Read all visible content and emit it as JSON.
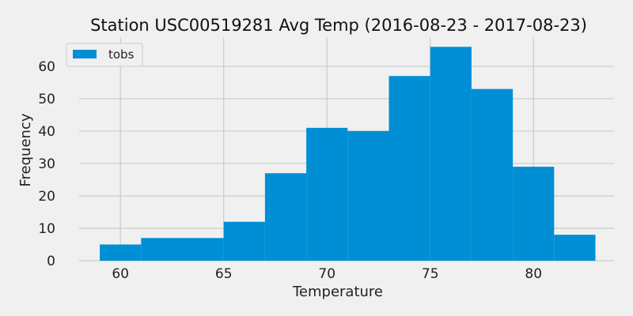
{
  "chart_data": {
    "type": "bar",
    "title": "Station USC00519281 Avg Temp (2016-08-23 - 2017-08-23)",
    "xlabel": "Temperature",
    "ylabel": "Frequency",
    "legend": {
      "entries": [
        "tobs"
      ],
      "placement": "top-left"
    },
    "grid": true,
    "xlim": [
      58,
      83.9
    ],
    "ylim": [
      0,
      69
    ],
    "xticks": [
      60,
      65,
      70,
      75,
      80
    ],
    "yticks": [
      0,
      10,
      20,
      30,
      40,
      50,
      60
    ],
    "bar_color": "#008fd5",
    "series": [
      {
        "name": "tobs",
        "bin_edges": [
          59,
          61,
          63,
          65,
          67,
          69,
          71,
          73,
          75,
          77,
          79,
          81,
          83
        ],
        "values": [
          5,
          7,
          7,
          12,
          27,
          41,
          40,
          57,
          66,
          53,
          29,
          8
        ]
      }
    ]
  }
}
